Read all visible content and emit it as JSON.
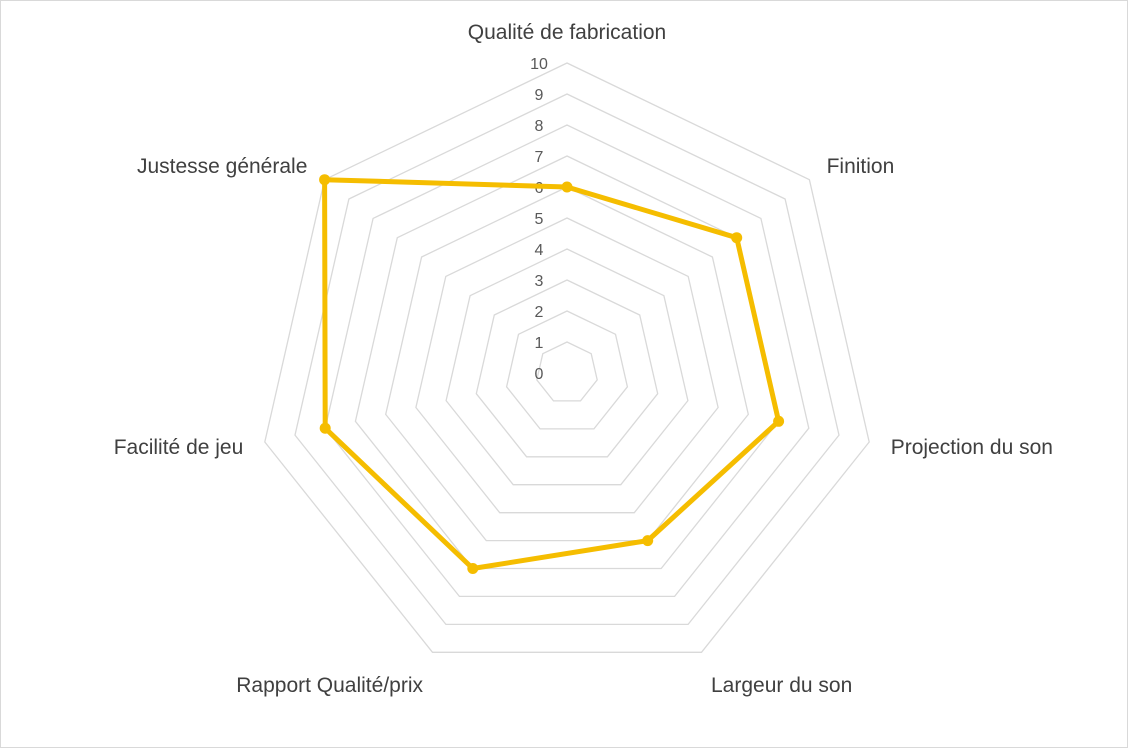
{
  "chart_data": {
    "type": "radar",
    "title": "",
    "axes": [
      "Qualité de fabrication",
      "Finition",
      "Projection du son",
      "Largeur du son",
      "Rapport Qualité/prix",
      "Facilité de jeu",
      "Justesse générale"
    ],
    "series": [
      {
        "values": [
          6,
          7,
          7,
          6,
          7,
          8,
          10
        ],
        "color": "#f5bd00"
      }
    ],
    "rlim": [
      0,
      10
    ],
    "ticks": [
      "0",
      "1",
      "2",
      "3",
      "4",
      "5",
      "6",
      "7",
      "8",
      "9",
      "10"
    ],
    "grid": true,
    "legend": "none",
    "grid_color": "#d9d9d9"
  }
}
